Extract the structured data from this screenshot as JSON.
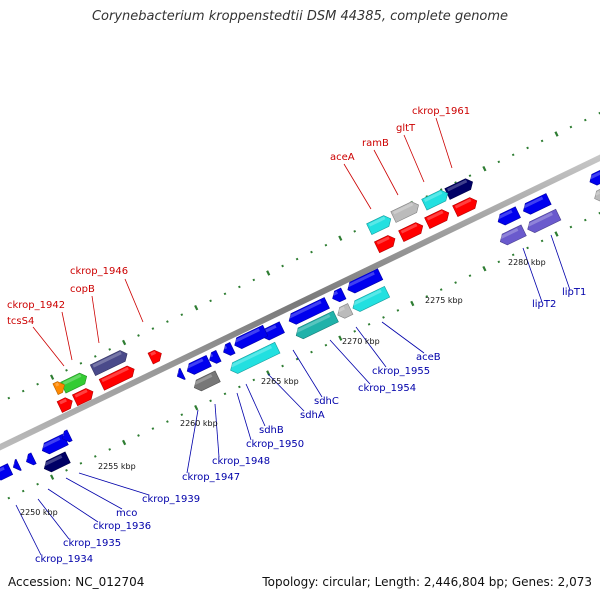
{
  "title": "Corynebacterium kroppenstedtii DSM 44385, complete genome",
  "footer": {
    "accession": "Accession: NC_012704",
    "topology": "Topology: circular; Length: 2,446,804 bp; Genes: 2,073"
  },
  "colors": {
    "backbone": "#8a8a8a",
    "dots_major": "#2e7d32",
    "dots_minor": "#2e7d32",
    "label_forward": "#cc0000",
    "label_reverse": "#0000aa",
    "red_gene": "#ff0000",
    "blue_gene": "#0000ee",
    "cyan_gene": "#22e0e0",
    "navy_gene": "#000066",
    "purple_gene": "#6a5acd",
    "green_gene": "#33cc33",
    "orange_gene": "#ff8800",
    "gray_gene": "#bbbbbb",
    "darkgray_gene": "#777777",
    "slate_gene": "#4a4a8a",
    "teal_gene": "#20b2aa"
  },
  "ticks": [
    "2250 kbp",
    "2255 kbp",
    "2260 kbp",
    "2265 kbp",
    "2270 kbp",
    "2275 kbp",
    "2280 kbp"
  ],
  "labels_forward": [
    "ckrop_1961",
    "gltT",
    "ramB",
    "aceA",
    "ckrop_1946",
    "copB",
    "ckrop_1942",
    "tcsS4"
  ],
  "labels_reverse": [
    "lipT1",
    "lipT2",
    "aceB",
    "ckrop_1955",
    "ckrop_1954",
    "sdhC",
    "sdhA",
    "sdhB",
    "ckrop_1950",
    "ckrop_1948",
    "ckrop_1947",
    "ckrop_1939",
    "mco",
    "ckrop_1936",
    "ckrop_1935",
    "ckrop_1934"
  ]
}
